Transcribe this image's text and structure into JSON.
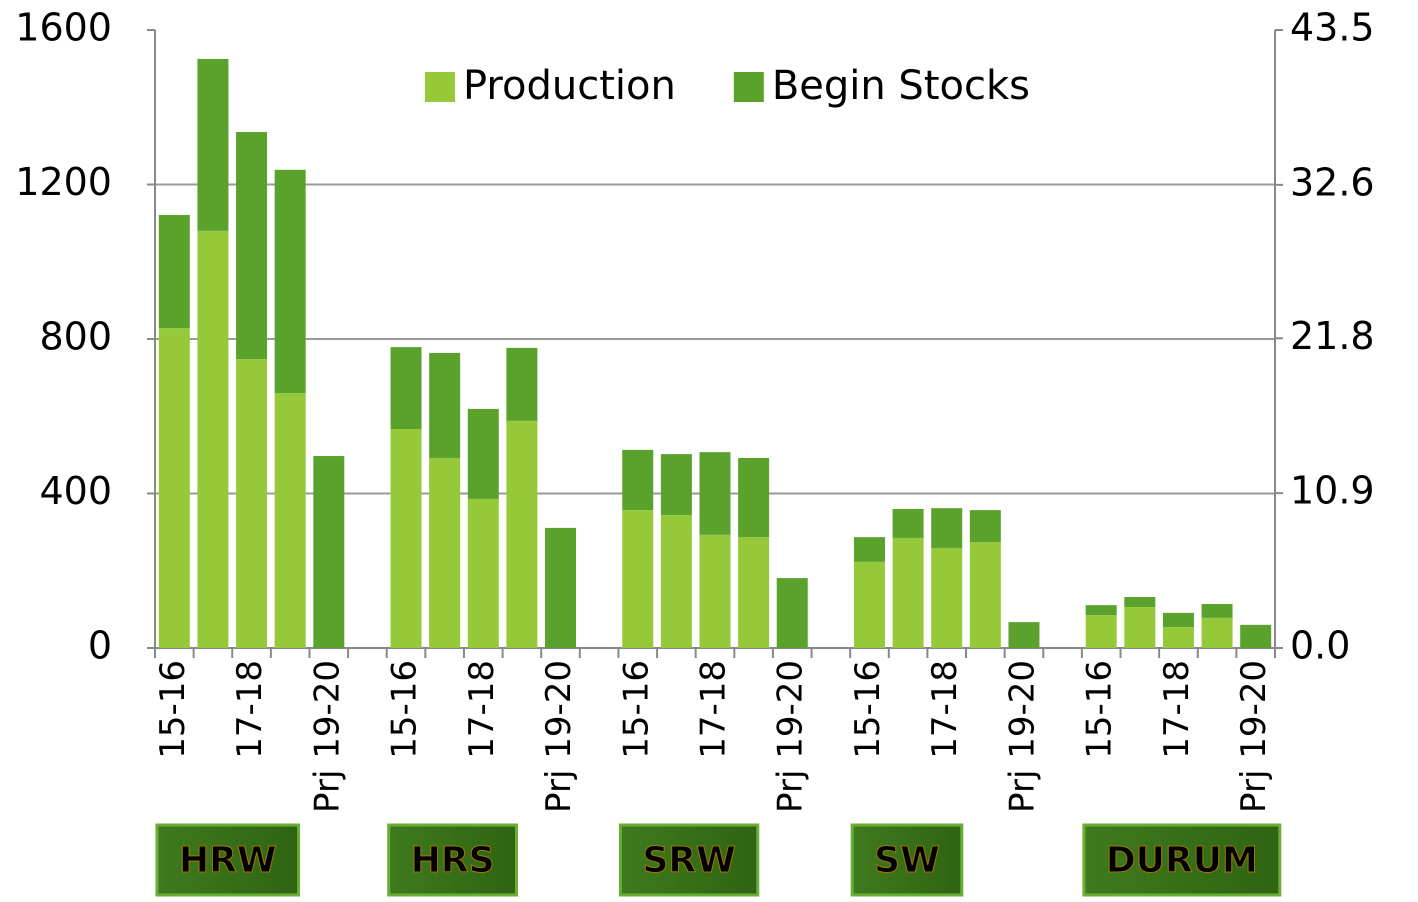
{
  "chart_data": {
    "type": "bar",
    "stacked": true,
    "groups": [
      "HRW",
      "HRS",
      "SRW",
      "SW",
      "DURUM"
    ],
    "categories": [
      "15-16",
      null,
      "17-18",
      null,
      "Prj 19-20",
      "15-16",
      null,
      "17-18",
      null,
      "Prj 19-20",
      "15-16",
      null,
      "17-18",
      null,
      "Prj 19-20",
      "15-16",
      null,
      "17-18",
      null,
      "Prj 19-20",
      "15-16",
      null,
      "17-18",
      null,
      "Prj 19-20"
    ],
    "series": [
      {
        "name": "Production",
        "color": "#96c93a",
        "values": [
          828,
          1080,
          748,
          660,
          null,
          567,
          492,
          386,
          588,
          null,
          357,
          344,
          293,
          287,
          null,
          223,
          285,
          259,
          274,
          null,
          85,
          106,
          54,
          78,
          null
        ]
      },
      {
        "name": "Begin Stocks",
        "color": "#5ba22d",
        "values": [
          293,
          445,
          588,
          578,
          497,
          212,
          272,
          233,
          189,
          311,
          156,
          158,
          214,
          205,
          181,
          64,
          75,
          103,
          83,
          67,
          26,
          26,
          37,
          36,
          60
        ]
      }
    ],
    "ylim": [
      0,
      1600
    ],
    "yticks": [
      0,
      400,
      800,
      1200,
      1600
    ],
    "y2lim": [
      0,
      43.5
    ],
    "y2ticks": [
      {
        "value": 0,
        "label": "0.0"
      },
      10.9,
      21.8,
      32.6,
      43.5
    ],
    "grid": true,
    "legend": "top"
  }
}
